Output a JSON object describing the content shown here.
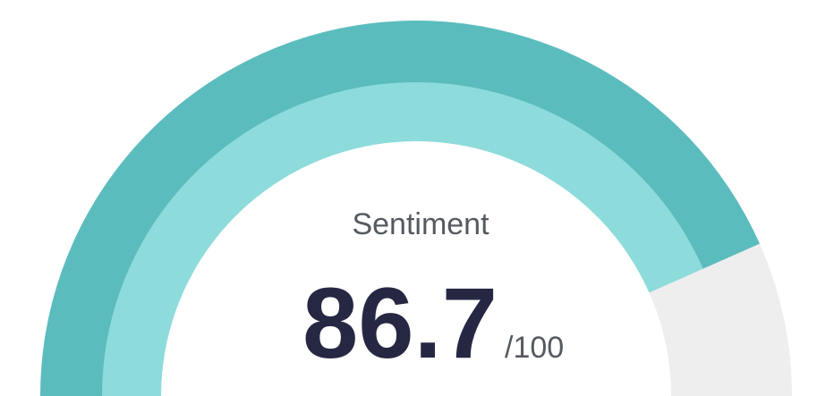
{
  "chart_data": {
    "type": "gauge",
    "title": "Sentiment",
    "value": 86.7,
    "max": {
      "value": 100,
      "label": "/100"
    },
    "colors": {
      "outer": "#5bbcbd",
      "inner": "#8ddbdb",
      "track": "#eeeeee"
    }
  }
}
